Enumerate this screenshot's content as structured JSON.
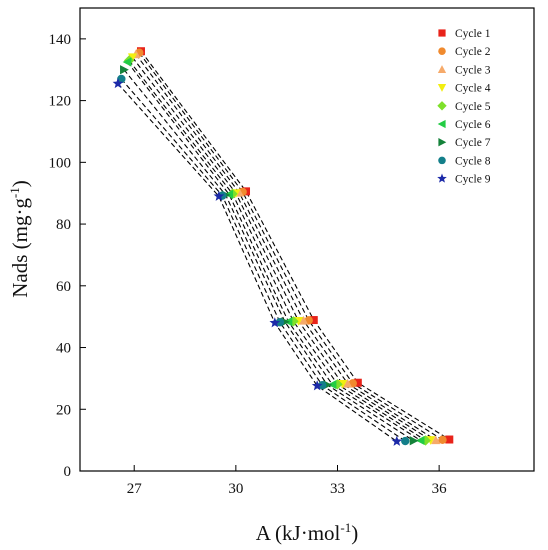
{
  "chart_data": {
    "type": "scatter",
    "title": "",
    "xlabel": "A (kJ·mol",
    "xlabel_sup": "-1",
    "xlabel_tail": ")",
    "ylabel": "Nads (mg·g",
    "ylabel_sup": "-1",
    "ylabel_tail": ")",
    "xlim": [
      25.4,
      38.8
    ],
    "ylim": [
      0,
      150
    ],
    "xticks": [
      27,
      30,
      33,
      36
    ],
    "yticks": [
      0,
      20,
      40,
      60,
      80,
      100,
      120,
      140
    ],
    "grid": false,
    "legend_position": "top-right",
    "connector_style": "dashed black line through each cycle's points",
    "series": [
      {
        "name": "Cycle 1",
        "marker": "square",
        "color": "#e8231a",
        "points": [
          [
            27.2,
            136.0
          ],
          [
            30.3,
            90.6
          ],
          [
            32.3,
            48.9
          ],
          [
            33.6,
            28.6
          ],
          [
            36.3,
            10.2
          ]
        ]
      },
      {
        "name": "Cycle 2",
        "marker": "circle",
        "color": "#f08a2e",
        "points": [
          [
            27.15,
            135.5
          ],
          [
            30.2,
            90.4
          ],
          [
            32.15,
            48.8
          ],
          [
            33.45,
            28.4
          ],
          [
            36.1,
            10.1
          ]
        ]
      },
      {
        "name": "Cycle 3",
        "marker": "triangle-up",
        "color": "#f6aa6a",
        "points": [
          [
            27.05,
            135.0
          ],
          [
            30.1,
            90.2
          ],
          [
            32.0,
            48.7
          ],
          [
            33.3,
            28.3
          ],
          [
            35.9,
            10.0
          ]
        ]
      },
      {
        "name": "Cycle 4",
        "marker": "triangle-down",
        "color": "#f2ee10",
        "points": [
          [
            26.95,
            134.0
          ],
          [
            30.0,
            90.0
          ],
          [
            31.85,
            48.6
          ],
          [
            33.15,
            28.2
          ],
          [
            35.75,
            10.0
          ]
        ]
      },
      {
        "name": "Cycle 5",
        "marker": "diamond",
        "color": "#7ee02a",
        "points": [
          [
            26.85,
            133.0
          ],
          [
            29.9,
            89.8
          ],
          [
            31.7,
            48.5
          ],
          [
            33.0,
            28.1
          ],
          [
            35.6,
            9.9
          ]
        ]
      },
      {
        "name": "Cycle 6",
        "marker": "triangle-left",
        "color": "#22cc44",
        "points": [
          [
            26.8,
            132.5
          ],
          [
            29.8,
            89.6
          ],
          [
            31.55,
            48.4
          ],
          [
            32.85,
            28.0
          ],
          [
            35.45,
            9.9
          ]
        ]
      },
      {
        "name": "Cycle 7",
        "marker": "triangle-right",
        "color": "#14823a",
        "points": [
          [
            26.7,
            130.0
          ],
          [
            29.7,
            89.4
          ],
          [
            31.45,
            48.3
          ],
          [
            32.7,
            27.9
          ],
          [
            35.25,
            9.8
          ]
        ]
      },
      {
        "name": "Cycle 8",
        "marker": "circle",
        "color": "#137f8a",
        "points": [
          [
            26.62,
            127.0
          ],
          [
            29.6,
            89.2
          ],
          [
            31.3,
            48.2
          ],
          [
            32.55,
            27.8
          ],
          [
            35.0,
            9.7
          ]
        ]
      },
      {
        "name": "Cycle 9",
        "marker": "star",
        "color": "#1c2aa8",
        "points": [
          [
            26.52,
            125.5
          ],
          [
            29.5,
            89.0
          ],
          [
            31.15,
            48.0
          ],
          [
            32.4,
            27.6
          ],
          [
            34.75,
            9.6
          ]
        ]
      }
    ]
  }
}
